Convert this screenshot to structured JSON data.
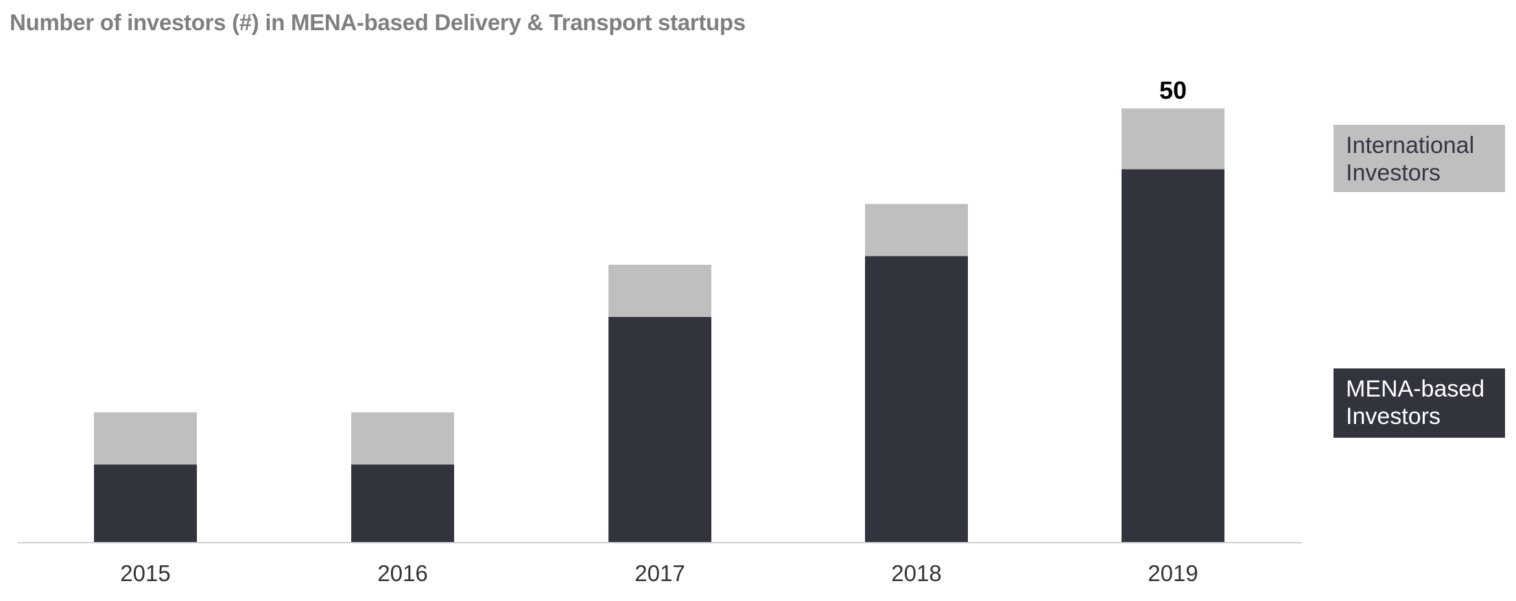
{
  "title": "Number of investors (#) in MENA-based Delivery & Transport startups",
  "chart_data": {
    "type": "bar",
    "stacked": true,
    "title": "Number of investors (#) in MENA-based Delivery & Transport startups",
    "categories": [
      "2015",
      "2016",
      "2017",
      "2018",
      "2019"
    ],
    "series": [
      {
        "name": "MENA-based Investors",
        "color": "#31333d",
        "values": [
          9,
          9,
          26,
          33,
          43
        ]
      },
      {
        "name": "International Investors",
        "color": "#bfbfbf",
        "values": [
          6,
          6,
          6,
          6,
          7
        ]
      }
    ],
    "totals": [
      15,
      15,
      32,
      39,
      50
    ],
    "data_labels": [
      {
        "category": "2019",
        "text": "50"
      }
    ],
    "ylim": [
      0,
      50
    ],
    "grid": false,
    "legend_position": "right"
  }
}
